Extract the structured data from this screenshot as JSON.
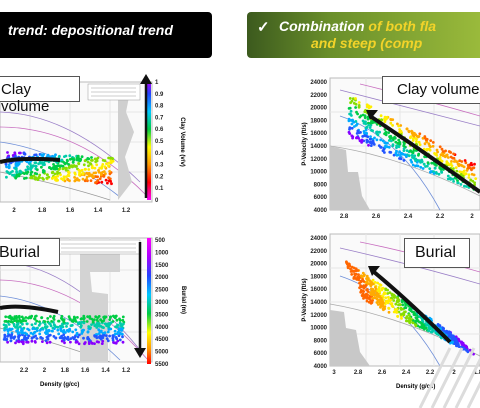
{
  "banners": {
    "left": {
      "text": "trend: depositional trend"
    },
    "right": {
      "check": "✓",
      "line1_white": "Combination",
      "line1_yellow": " of both fla",
      "line2": "and steep  (comp"
    }
  },
  "labels": {
    "clay_left": "Clay volume",
    "clay_right": "Clay volume",
    "burial_left": "Burial",
    "burial_right": "Burial"
  },
  "left_top": {
    "colorbar_ticks": [
      "1",
      "0.9",
      "0.8",
      "0.7",
      "0.6",
      "0.5",
      "0.4",
      "0.3",
      "0.2",
      "0.1",
      "0"
    ],
    "colorbar_label": "Clay Volume (v/v)",
    "x_ticks": [
      "2",
      "1.8",
      "1.6",
      "1.4",
      "1.2"
    ]
  },
  "left_bottom": {
    "colorbar_ticks": [
      "500",
      "1000",
      "1500",
      "2000",
      "2500",
      "3000",
      "3500",
      "4000",
      "4500",
      "5000",
      "5500"
    ],
    "colorbar_label": "Burial (m)",
    "x_ticks": [
      "2.2",
      "2",
      "1.8",
      "1.6",
      "1.4",
      "1.2"
    ],
    "xlabel": "Density (g/cc)"
  },
  "right_top": {
    "y_ticks": [
      "24000",
      "22000",
      "20000",
      "18000",
      "16000",
      "14000",
      "12000",
      "10000",
      "8000",
      "6000",
      "4000"
    ],
    "ylabel": "P-Velocity (ft/s)",
    "x_ticks": [
      "2.8",
      "2.6",
      "2.4",
      "2.2",
      "2"
    ]
  },
  "right_bottom": {
    "y_ticks": [
      "24000",
      "22000",
      "20000",
      "18000",
      "16000",
      "14000",
      "12000",
      "10000",
      "8000",
      "6000",
      "4000"
    ],
    "ylabel": "P-Velocity (ft/s)",
    "x_ticks": [
      "3",
      "2.8",
      "2.6",
      "2.4",
      "2.2",
      "2",
      "1.8"
    ],
    "xlabel": "Density (g/cc)"
  },
  "colors": {
    "banner_left": "#000000",
    "banner_right": "#6a8f2a",
    "highlight": "#f2d329"
  }
}
